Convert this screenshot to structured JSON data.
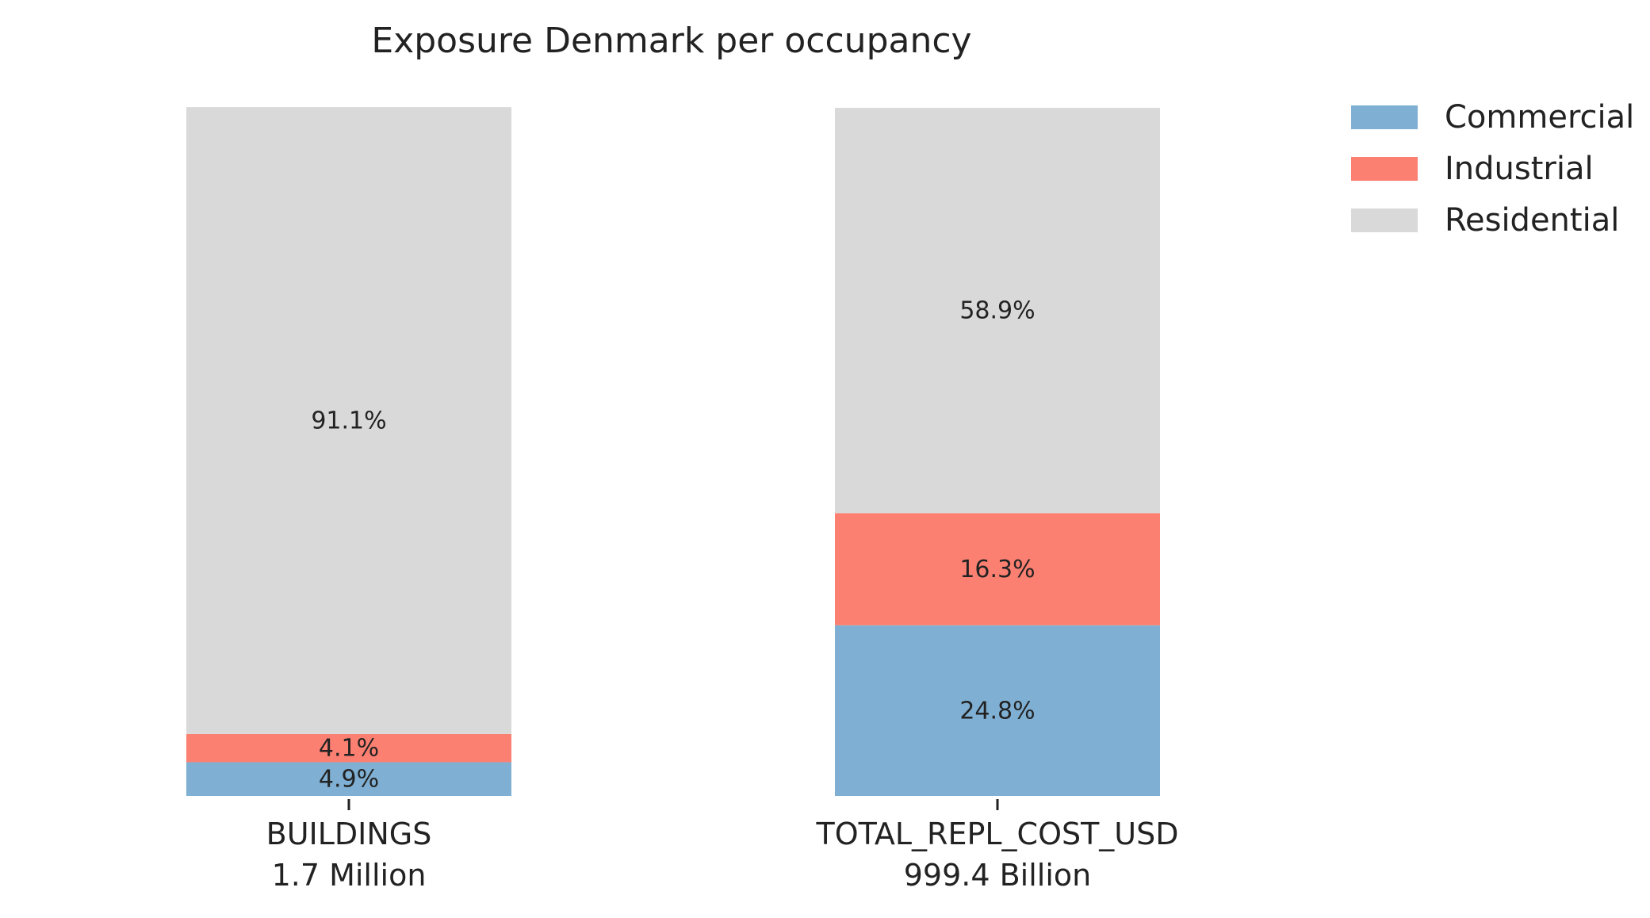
{
  "chart_data": {
    "type": "bar",
    "stacked": true,
    "normalized_percent": true,
    "title": "Exposure Denmark per occupancy",
    "categories": [
      "BUILDINGS",
      "TOTAL_REPL_COST_USD"
    ],
    "category_totals": [
      "1.7 Million",
      "999.4 Billion"
    ],
    "series": [
      {
        "name": "Commercial",
        "values": [
          4.9,
          24.8
        ],
        "labels": [
          "4.9%",
          "24.8%"
        ],
        "color": "#7fb0d3"
      },
      {
        "name": "Industrial",
        "values": [
          4.1,
          16.3
        ],
        "labels": [
          "4.1%",
          "16.3%"
        ],
        "color": "#fb8072"
      },
      {
        "name": "Residential",
        "values": [
          91.1,
          58.9
        ],
        "labels": [
          "91.1%",
          "58.9%"
        ],
        "color": "#d9d9d9"
      }
    ],
    "ylim": [
      0,
      100
    ],
    "grid": false,
    "legend_position": "top-right"
  }
}
